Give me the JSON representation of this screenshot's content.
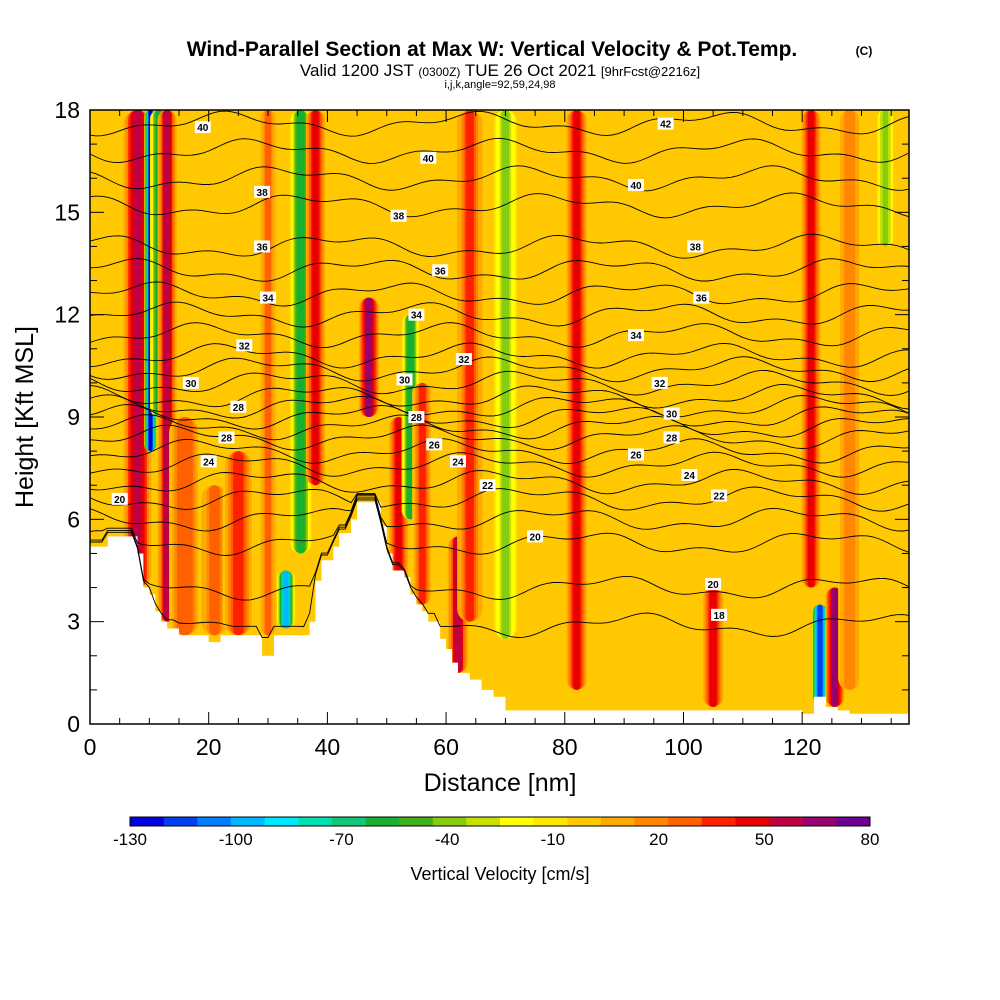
{
  "header": {
    "title": "Wind-Parallel Section at Max W: Vertical Velocity & Pot.Temp.",
    "copyright": "(C)",
    "valid_a": "Valid 1200 JST",
    "valid_b": "(0300Z)",
    "valid_c": "TUE 26 Oct 2021",
    "valid_d": "[9hrFcst@2216z]",
    "sub": "i,j,k,angle=92,59,24,98"
  },
  "chart_data": {
    "type": "heatmap",
    "xlabel": "Distance [nm]",
    "ylabel": "Height [Kft MSL]",
    "xlim": [
      0,
      138
    ],
    "ylim": [
      0,
      18
    ],
    "x_ticks": [
      0,
      20,
      40,
      60,
      80,
      100,
      120
    ],
    "y_ticks": [
      0,
      3,
      6,
      9,
      12,
      15,
      18
    ],
    "colorbar": {
      "label": "Vertical Velocity [cm/s]",
      "range": [
        -130,
        80
      ],
      "ticks": [
        -130,
        -100,
        -70,
        -40,
        -10,
        20,
        50,
        80
      ],
      "colors": [
        "#0000e0",
        "#0040f0",
        "#0080ff",
        "#00b8ff",
        "#00e8ff",
        "#00e0b0",
        "#10c878",
        "#18b030",
        "#40b018",
        "#88cc10",
        "#c8e000",
        "#ffff00",
        "#ffe600",
        "#ffc800",
        "#ffaa00",
        "#ff8800",
        "#ff6000",
        "#ff2000",
        "#e80000",
        "#c00040",
        "#980070",
        "#6c0090"
      ]
    },
    "background_value": -5,
    "terrain_top": [
      [
        0,
        5.2
      ],
      [
        3,
        5.5
      ],
      [
        6,
        5.5
      ],
      [
        8,
        5.0
      ],
      [
        9,
        4.0
      ],
      [
        10,
        3.8
      ],
      [
        11,
        3.3
      ],
      [
        12,
        3.0
      ],
      [
        13,
        2.8
      ],
      [
        14,
        2.8
      ],
      [
        15,
        2.6
      ],
      [
        18,
        2.6
      ],
      [
        20,
        2.4
      ],
      [
        22,
        2.6
      ],
      [
        26,
        2.6
      ],
      [
        29,
        2.0
      ],
      [
        31,
        2.6
      ],
      [
        33,
        2.6
      ],
      [
        34,
        2.6
      ],
      [
        36,
        2.6
      ],
      [
        37,
        3.0
      ],
      [
        38,
        4.2
      ],
      [
        39,
        4.8
      ],
      [
        41,
        5.2
      ],
      [
        42,
        5.6
      ],
      [
        44,
        6.0
      ],
      [
        45,
        6.5
      ],
      [
        48,
        6.5
      ],
      [
        49,
        5.8
      ],
      [
        50,
        5.0
      ],
      [
        51,
        4.5
      ],
      [
        53,
        4.3
      ],
      [
        54,
        3.8
      ],
      [
        55,
        3.5
      ],
      [
        56,
        3.3
      ],
      [
        57,
        3.0
      ],
      [
        59,
        2.5
      ],
      [
        60,
        2.2
      ],
      [
        61,
        1.8
      ],
      [
        62,
        1.5
      ],
      [
        64,
        1.3
      ],
      [
        66,
        1.0
      ],
      [
        68,
        0.8
      ],
      [
        70,
        0.4
      ],
      [
        80,
        0.4
      ],
      [
        120,
        0.3
      ],
      [
        122,
        0.8
      ],
      [
        124,
        0.5
      ],
      [
        126,
        0.4
      ],
      [
        128,
        0.3
      ],
      [
        138,
        0.3
      ]
    ],
    "streaks": [
      {
        "x": 8,
        "v": 60,
        "y0": 4.0,
        "y1": 18,
        "w": 2.2
      },
      {
        "x": 10.2,
        "v": -125,
        "y0": 8.0,
        "y1": 18,
        "w": 1.0
      },
      {
        "x": 11.6,
        "v": -55,
        "y0": 9.0,
        "y1": 18,
        "w": 1.4
      },
      {
        "x": 13.0,
        "v": 55,
        "y0": 3.0,
        "y1": 18,
        "w": 1.5
      },
      {
        "x": 16,
        "v": 30,
        "y0": 2.6,
        "y1": 9,
        "w": 2.5
      },
      {
        "x": 21,
        "v": 25,
        "y0": 2.6,
        "y1": 7,
        "w": 2.5
      },
      {
        "x": 25,
        "v": 35,
        "y0": 2.6,
        "y1": 8,
        "w": 2.5
      },
      {
        "x": 30,
        "v": 25,
        "y0": 2.6,
        "y1": 18,
        "w": 1.4
      },
      {
        "x": 33,
        "v": -95,
        "y0": 2.8,
        "y1": 4.5,
        "w": 1.4
      },
      {
        "x": 35.5,
        "v": -55,
        "y0": 5.0,
        "y1": 18,
        "w": 1.7
      },
      {
        "x": 38,
        "v": 45,
        "y0": 7.0,
        "y1": 18,
        "w": 1.5
      },
      {
        "x": 47,
        "v": 65,
        "y0": 9.0,
        "y1": 12.5,
        "w": 1.6
      },
      {
        "x": 52,
        "v": 50,
        "y0": 4.0,
        "y1": 9,
        "w": 1.5
      },
      {
        "x": 54,
        "v": -55,
        "y0": 6.0,
        "y1": 12,
        "w": 1.4
      },
      {
        "x": 56,
        "v": 35,
        "y0": 3.5,
        "y1": 10,
        "w": 1.6
      },
      {
        "x": 62,
        "v": 55,
        "y0": 1.5,
        "y1": 5.5,
        "w": 1.6
      },
      {
        "x": 64,
        "v": 40,
        "y0": 3.0,
        "y1": 18,
        "w": 2.0
      },
      {
        "x": 70,
        "v": -35,
        "y0": 2.5,
        "y1": 18,
        "w": 1.8
      },
      {
        "x": 82,
        "v": 45,
        "y0": 1.0,
        "y1": 18,
        "w": 1.6
      },
      {
        "x": 105,
        "v": 45,
        "y0": 0.5,
        "y1": 4.0,
        "w": 1.6
      },
      {
        "x": 121.5,
        "v": 50,
        "y0": 4.0,
        "y1": 18,
        "w": 1.5
      },
      {
        "x": 123,
        "v": -120,
        "y0": 0.6,
        "y1": 3.5,
        "w": 1.3
      },
      {
        "x": 125.5,
        "v": 65,
        "y0": 0.5,
        "y1": 4.0,
        "w": 1.5
      },
      {
        "x": 128,
        "v": 20,
        "y0": 1.0,
        "y1": 18,
        "w": 1.8
      },
      {
        "x": 134,
        "v": -40,
        "y0": 14.0,
        "y1": 18,
        "w": 1.3
      }
    ],
    "isentropes": [
      {
        "k": 18,
        "y": 2.9
      },
      {
        "k": 19,
        "y": 4.0
      },
      {
        "k": 20,
        "y": 5.3
      },
      {
        "k": 21,
        "y": 6.0
      },
      {
        "k": 22,
        "y": 6.6
      },
      {
        "k": 23,
        "y": 7.1
      },
      {
        "k": 24,
        "y": 7.6
      },
      {
        "k": 25,
        "y": 8.0
      },
      {
        "k": 26,
        "y": 8.4
      },
      {
        "k": 27,
        "y": 8.7
      },
      {
        "k": 28,
        "y": 9.0
      },
      {
        "k": 29,
        "y": 9.3
      },
      {
        "k": 30,
        "y": 9.6
      },
      {
        "k": 31,
        "y": 10.0
      },
      {
        "k": 32,
        "y": 10.4
      },
      {
        "k": 33,
        "y": 10.8
      },
      {
        "k": 34,
        "y": 11.4
      },
      {
        "k": 35,
        "y": 12.0
      },
      {
        "k": 36,
        "y": 12.6
      },
      {
        "k": 37,
        "y": 13.3
      },
      {
        "k": 38,
        "y": 14.0
      },
      {
        "k": 39,
        "y": 15.2
      },
      {
        "k": 40,
        "y": 16.0
      },
      {
        "k": 41,
        "y": 16.8
      },
      {
        "k": 42,
        "y": 17.6
      }
    ],
    "contour_labels": [
      {
        "text": "40",
        "x": 19,
        "y": 17.5
      },
      {
        "text": "40",
        "x": 57,
        "y": 16.6
      },
      {
        "text": "42",
        "x": 97,
        "y": 17.6
      },
      {
        "text": "38",
        "x": 29,
        "y": 15.6
      },
      {
        "text": "38",
        "x": 52,
        "y": 14.9
      },
      {
        "text": "40",
        "x": 92,
        "y": 15.8
      },
      {
        "text": "36",
        "x": 29,
        "y": 14.0
      },
      {
        "text": "36",
        "x": 59,
        "y": 13.3
      },
      {
        "text": "38",
        "x": 102,
        "y": 14.0
      },
      {
        "text": "34",
        "x": 30,
        "y": 12.5
      },
      {
        "text": "34",
        "x": 55,
        "y": 12.0
      },
      {
        "text": "36",
        "x": 103,
        "y": 12.5
      },
      {
        "text": "32",
        "x": 26,
        "y": 11.1
      },
      {
        "text": "32",
        "x": 63,
        "y": 10.7
      },
      {
        "text": "34",
        "x": 92,
        "y": 11.4
      },
      {
        "text": "30",
        "x": 17,
        "y": 10.0
      },
      {
        "text": "30",
        "x": 53,
        "y": 10.1
      },
      {
        "text": "32",
        "x": 96,
        "y": 10.0
      },
      {
        "text": "28",
        "x": 25,
        "y": 9.3
      },
      {
        "text": "28",
        "x": 55,
        "y": 9.0
      },
      {
        "text": "30",
        "x": 98,
        "y": 9.1
      },
      {
        "text": "28",
        "x": 23,
        "y": 8.4
      },
      {
        "text": "26",
        "x": 58,
        "y": 8.2
      },
      {
        "text": "28",
        "x": 98,
        "y": 8.4
      },
      {
        "text": "24",
        "x": 20,
        "y": 7.7
      },
      {
        "text": "24",
        "x": 62,
        "y": 7.7
      },
      {
        "text": "26",
        "x": 92,
        "y": 7.9
      },
      {
        "text": "20",
        "x": 5,
        "y": 6.6
      },
      {
        "text": "22",
        "x": 67,
        "y": 7.0
      },
      {
        "text": "24",
        "x": 101,
        "y": 7.3
      },
      {
        "text": "22",
        "x": 106,
        "y": 6.7
      },
      {
        "text": "20",
        "x": 75,
        "y": 5.5
      },
      {
        "text": "20",
        "x": 105,
        "y": 4.1
      },
      {
        "text": "18",
        "x": 106,
        "y": 3.2
      }
    ]
  }
}
